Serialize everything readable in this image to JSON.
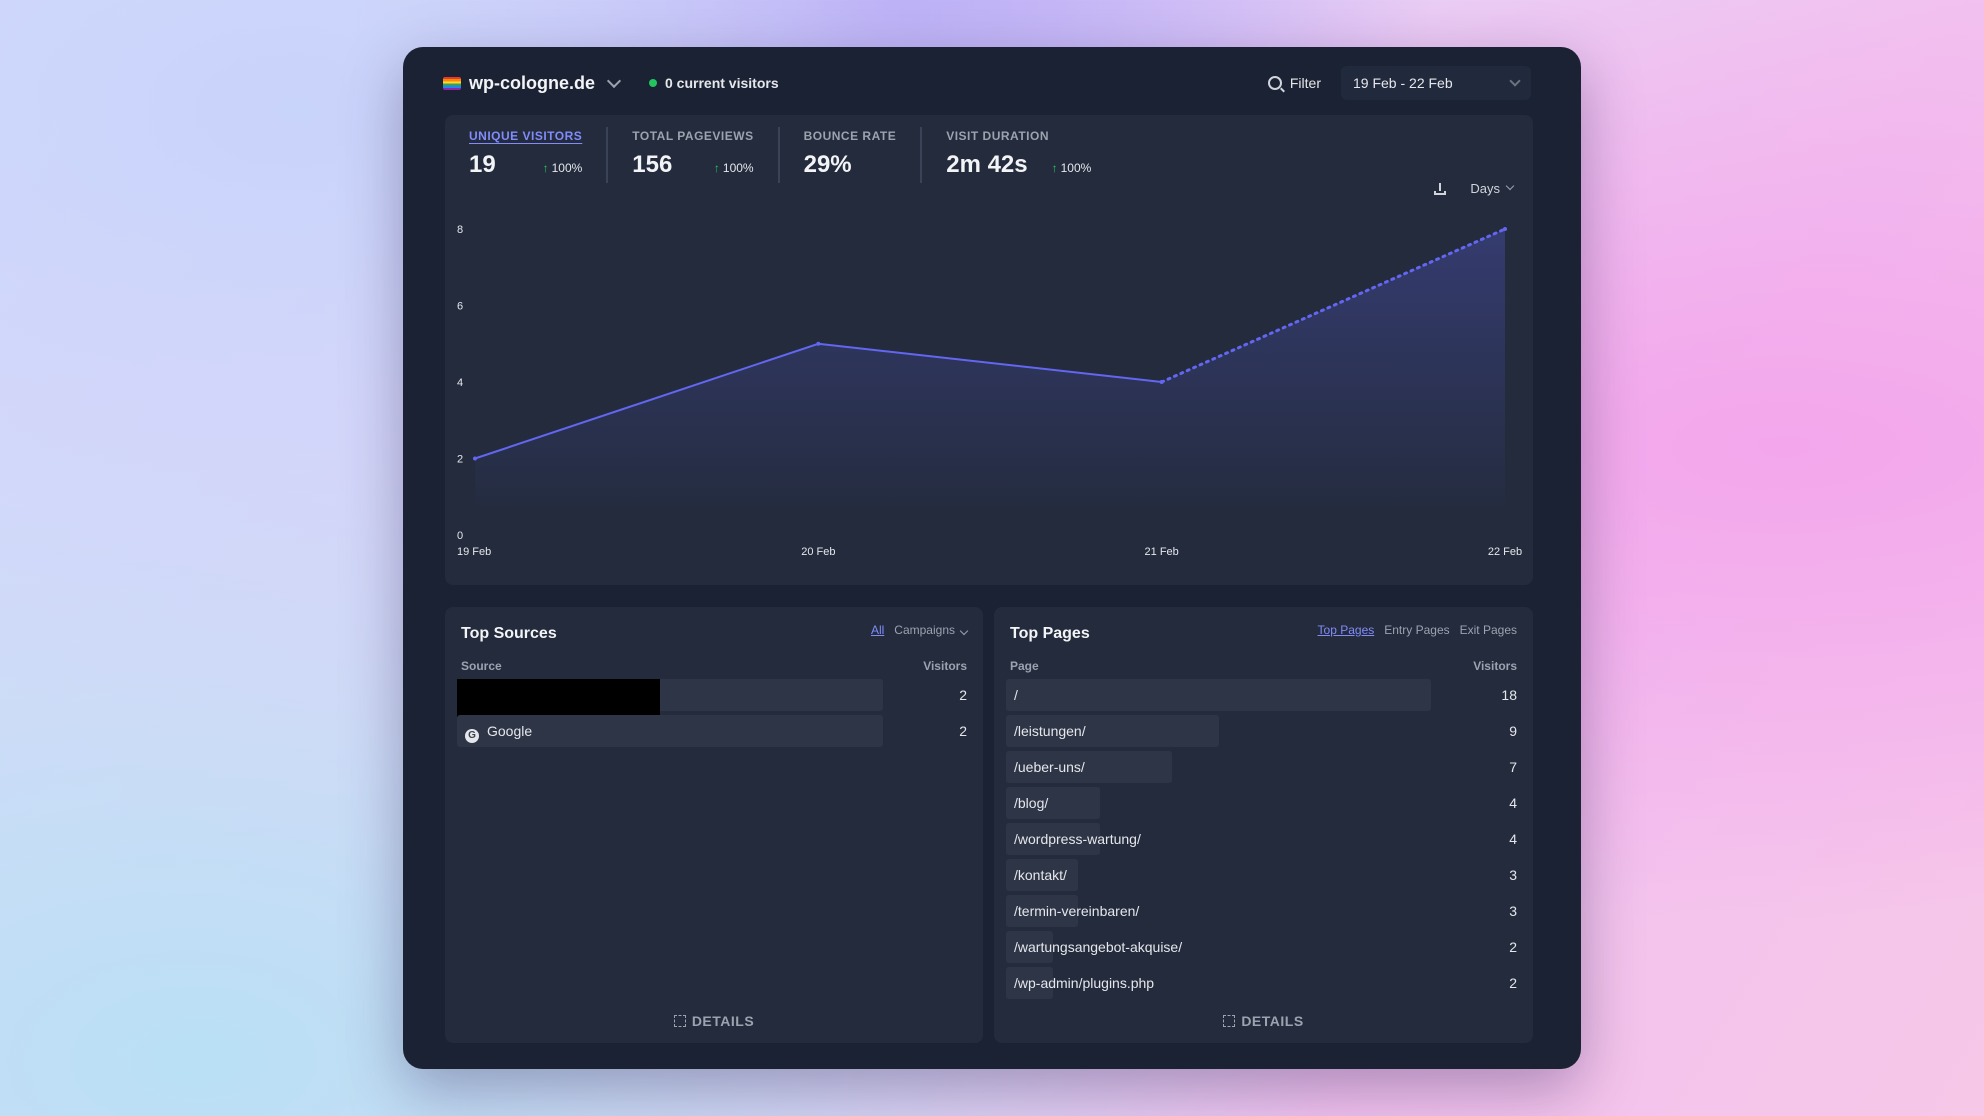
{
  "header": {
    "site": "wp-cologne.de",
    "current_visitors": "0 current visitors",
    "filter_label": "Filter",
    "date_range": "19 Feb - 22 Feb"
  },
  "stats": [
    {
      "label": "UNIQUE VISITORS",
      "value": "19",
      "change": "100%",
      "active": true
    },
    {
      "label": "TOTAL PAGEVIEWS",
      "value": "156",
      "change": "100%",
      "active": false
    },
    {
      "label": "BOUNCE RATE",
      "value": "29%",
      "change": "",
      "active": false
    },
    {
      "label": "VISIT DURATION",
      "value": "2m 42s",
      "change": "100%",
      "active": false
    }
  ],
  "chart_tools": {
    "interval": "Days",
    "download_icon": "download-icon"
  },
  "chart_data": {
    "type": "area",
    "x": [
      "19 Feb",
      "20 Feb",
      "21 Feb",
      "22 Feb"
    ],
    "series": [
      {
        "values": [
          2,
          5,
          4,
          8
        ]
      }
    ],
    "ylim": [
      0,
      8
    ],
    "y_ticks": [
      "0",
      "2",
      "4",
      "6",
      "8"
    ],
    "line_color": "#6366f1",
    "incomplete_last_segment": true
  },
  "sources": {
    "title": "Top Sources",
    "tabs": [
      "All",
      "Campaigns"
    ],
    "col_source": "Source",
    "col_visitors": "Visitors",
    "rows": [
      {
        "label": "",
        "value": "2",
        "fraction": 0.99,
        "redacted": true
      },
      {
        "label": "Google",
        "value": "2",
        "fraction": 0.99,
        "icon": "google-icon"
      }
    ],
    "details": "DETAILS"
  },
  "pages": {
    "title": "Top Pages",
    "tabs": [
      "Top Pages",
      "Entry Pages",
      "Exit Pages"
    ],
    "col_page": "Page",
    "col_visitors": "Visitors",
    "rows": [
      {
        "label": "/",
        "value": "18",
        "fraction": 1.0
      },
      {
        "label": "/leistungen/",
        "value": "9",
        "fraction": 0.5
      },
      {
        "label": "/ueber-uns/",
        "value": "7",
        "fraction": 0.39
      },
      {
        "label": "/blog/",
        "value": "4",
        "fraction": 0.22
      },
      {
        "label": "/wordpress-wartung/",
        "value": "4",
        "fraction": 0.22
      },
      {
        "label": "/kontakt/",
        "value": "3",
        "fraction": 0.17
      },
      {
        "label": "/termin-vereinbaren/",
        "value": "3",
        "fraction": 0.17
      },
      {
        "label": "/wartungsangebot-akquise/",
        "value": "2",
        "fraction": 0.11
      },
      {
        "label": "/wp-admin/plugins.php",
        "value": "2",
        "fraction": 0.11
      }
    ],
    "details": "DETAILS"
  }
}
